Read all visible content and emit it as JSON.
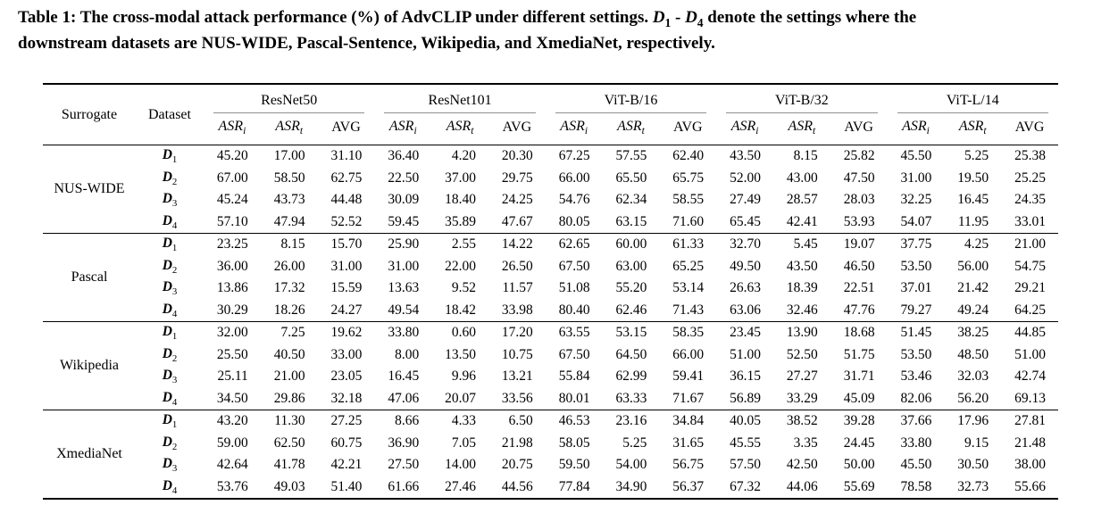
{
  "caption": {
    "part1": "Table 1: The cross-modal attack performance (%) of AdvCLIP under different settings. ",
    "d_symbol": "D",
    "d1_sub": "1",
    "range_dash": " - ",
    "d4_sub": "4",
    "part2": " denote the settings where the",
    "line2": "downstream datasets are NUS-WIDE, Pascal-Sentence, Wikipedia, and XmediaNet, respectively."
  },
  "table": {
    "corner": {
      "surrogate": "Surrogate",
      "dataset": "Dataset"
    },
    "model_groups": [
      "ResNet50",
      "ResNet101",
      "ViT-B/16",
      "ViT-B/32",
      "ViT-L/14"
    ],
    "metric_headers": [
      {
        "label": "ASR",
        "sub": "i"
      },
      {
        "label": "ASR",
        "sub": "t"
      },
      {
        "label": "AVG",
        "sub": ""
      }
    ],
    "dataset_symbol": "D",
    "surrogate_groups": [
      {
        "surrogate": "NUS-WIDE",
        "rows": [
          {
            "dataset_sub": "1",
            "values": [
              "45.20",
              "17.00",
              "31.10",
              "36.40",
              "4.20",
              "20.30",
              "67.25",
              "57.55",
              "62.40",
              "43.50",
              "8.15",
              "25.82",
              "45.50",
              "5.25",
              "25.38"
            ]
          },
          {
            "dataset_sub": "2",
            "values": [
              "67.00",
              "58.50",
              "62.75",
              "22.50",
              "37.00",
              "29.75",
              "66.00",
              "65.50",
              "65.75",
              "52.00",
              "43.00",
              "47.50",
              "31.00",
              "19.50",
              "25.25"
            ]
          },
          {
            "dataset_sub": "3",
            "values": [
              "45.24",
              "43.73",
              "44.48",
              "30.09",
              "18.40",
              "24.25",
              "54.76",
              "62.34",
              "58.55",
              "27.49",
              "28.57",
              "28.03",
              "32.25",
              "16.45",
              "24.35"
            ]
          },
          {
            "dataset_sub": "4",
            "values": [
              "57.10",
              "47.94",
              "52.52",
              "59.45",
              "35.89",
              "47.67",
              "80.05",
              "63.15",
              "71.60",
              "65.45",
              "42.41",
              "53.93",
              "54.07",
              "11.95",
              "33.01"
            ]
          }
        ]
      },
      {
        "surrogate": "Pascal",
        "rows": [
          {
            "dataset_sub": "1",
            "values": [
              "23.25",
              "8.15",
              "15.70",
              "25.90",
              "2.55",
              "14.22",
              "62.65",
              "60.00",
              "61.33",
              "32.70",
              "5.45",
              "19.07",
              "37.75",
              "4.25",
              "21.00"
            ]
          },
          {
            "dataset_sub": "2",
            "values": [
              "36.00",
              "26.00",
              "31.00",
              "31.00",
              "22.00",
              "26.50",
              "67.50",
              "63.00",
              "65.25",
              "49.50",
              "43.50",
              "46.50",
              "53.50",
              "56.00",
              "54.75"
            ]
          },
          {
            "dataset_sub": "3",
            "values": [
              "13.86",
              "17.32",
              "15.59",
              "13.63",
              "9.52",
              "11.57",
              "51.08",
              "55.20",
              "53.14",
              "26.63",
              "18.39",
              "22.51",
              "37.01",
              "21.42",
              "29.21"
            ]
          },
          {
            "dataset_sub": "4",
            "values": [
              "30.29",
              "18.26",
              "24.27",
              "49.54",
              "18.42",
              "33.98",
              "80.40",
              "62.46",
              "71.43",
              "63.06",
              "32.46",
              "47.76",
              "79.27",
              "49.24",
              "64.25"
            ]
          }
        ]
      },
      {
        "surrogate": "Wikipedia",
        "rows": [
          {
            "dataset_sub": "1",
            "values": [
              "32.00",
              "7.25",
              "19.62",
              "33.80",
              "0.60",
              "17.20",
              "63.55",
              "53.15",
              "58.35",
              "23.45",
              "13.90",
              "18.68",
              "51.45",
              "38.25",
              "44.85"
            ]
          },
          {
            "dataset_sub": "2",
            "values": [
              "25.50",
              "40.50",
              "33.00",
              "8.00",
              "13.50",
              "10.75",
              "67.50",
              "64.50",
              "66.00",
              "51.00",
              "52.50",
              "51.75",
              "53.50",
              "48.50",
              "51.00"
            ]
          },
          {
            "dataset_sub": "3",
            "values": [
              "25.11",
              "21.00",
              "23.05",
              "16.45",
              "9.96",
              "13.21",
              "55.84",
              "62.99",
              "59.41",
              "36.15",
              "27.27",
              "31.71",
              "53.46",
              "32.03",
              "42.74"
            ]
          },
          {
            "dataset_sub": "4",
            "values": [
              "34.50",
              "29.86",
              "32.18",
              "47.06",
              "20.07",
              "33.56",
              "80.01",
              "63.33",
              "71.67",
              "56.89",
              "33.29",
              "45.09",
              "82.06",
              "56.20",
              "69.13"
            ]
          }
        ]
      },
      {
        "surrogate": "XmediaNet",
        "rows": [
          {
            "dataset_sub": "1",
            "values": [
              "43.20",
              "11.30",
              "27.25",
              "8.66",
              "4.33",
              "6.50",
              "46.53",
              "23.16",
              "34.84",
              "40.05",
              "38.52",
              "39.28",
              "37.66",
              "17.96",
              "27.81"
            ]
          },
          {
            "dataset_sub": "2",
            "values": [
              "59.00",
              "62.50",
              "60.75",
              "36.90",
              "7.05",
              "21.98",
              "58.05",
              "5.25",
              "31.65",
              "45.55",
              "3.35",
              "24.45",
              "33.80",
              "9.15",
              "21.48"
            ]
          },
          {
            "dataset_sub": "3",
            "values": [
              "42.64",
              "41.78",
              "42.21",
              "27.50",
              "14.00",
              "20.75",
              "59.50",
              "54.00",
              "56.75",
              "57.50",
              "42.50",
              "50.00",
              "45.50",
              "30.50",
              "38.00"
            ]
          },
          {
            "dataset_sub": "4",
            "values": [
              "53.76",
              "49.03",
              "51.40",
              "61.66",
              "27.46",
              "44.56",
              "77.84",
              "34.90",
              "56.37",
              "67.32",
              "44.06",
              "55.69",
              "78.58",
              "32.73",
              "55.66"
            ]
          }
        ]
      }
    ]
  },
  "colors": {
    "text": "#000000",
    "rule_heavy": "#000000",
    "rule_light": "#8f8f8f",
    "background": "#ffffff"
  }
}
